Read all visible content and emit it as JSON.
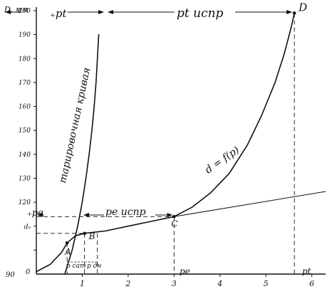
{
  "chart_data": {
    "type": "line",
    "title": "",
    "ylabel": "D, мм",
    "xlabel": "",
    "xlim": [
      0,
      6.3
    ],
    "ylim": [
      90,
      200
    ],
    "x_ticks": [
      1,
      2,
      3,
      4,
      5,
      6
    ],
    "y_ticks": [
      100,
      110,
      120,
      130,
      140,
      150,
      160,
      170,
      180,
      190,
      200
    ],
    "y_tick_labels": [
      "",
      "d₀",
      "120",
      "130",
      "140",
      "150",
      "160",
      "170",
      "180",
      "190",
      "200"
    ],
    "origin_label": "0",
    "y_bottom_label": "90",
    "series": [
      {
        "name": "тарировочная кривая",
        "x": [
          0.62,
          0.78,
          0.9,
          1.0,
          1.08,
          1.15,
          1.21,
          1.26,
          1.3,
          1.33,
          1.36
        ],
        "y": [
          90,
          100,
          110,
          120,
          130,
          140,
          150,
          160,
          170,
          180,
          190
        ]
      },
      {
        "name": "d = f(p)",
        "x": [
          0.0,
          0.3,
          0.55,
          0.67,
          0.85,
          1.05,
          1.5,
          2.0,
          2.5,
          3.0,
          3.4,
          3.8,
          4.2,
          4.6,
          4.9,
          5.2,
          5.4,
          5.55,
          5.62
        ],
        "y": [
          91,
          94,
          99,
          103,
          106,
          107,
          108,
          110,
          112,
          114,
          118,
          124,
          132,
          144,
          156,
          170,
          182,
          193,
          199
        ]
      },
      {
        "name": "",
        "x": [
          3.0,
          6.3
        ],
        "y": [
          114,
          124.5
        ]
      }
    ],
    "points": [
      {
        "label": "A",
        "x": 0.67,
        "y": 103
      },
      {
        "label": "B",
        "x": 1.05,
        "y": 107
      },
      {
        "label": "C",
        "x": 3.0,
        "y": 114
      },
      {
        "label": "D",
        "x": 5.62,
        "y": 199
      }
    ],
    "annotations": {
      "pt": "₊pt",
      "pt_ispr": "pt испр",
      "pe": "₊pe",
      "pe_ispr": "pe испр",
      "d_eq": "d = f(p)",
      "tar": "тарировочная кривая",
      "p_sat": "p сат",
      "p_dn": "p дн",
      "x_pe": "pe",
      "x_pt": "pt"
    }
  }
}
